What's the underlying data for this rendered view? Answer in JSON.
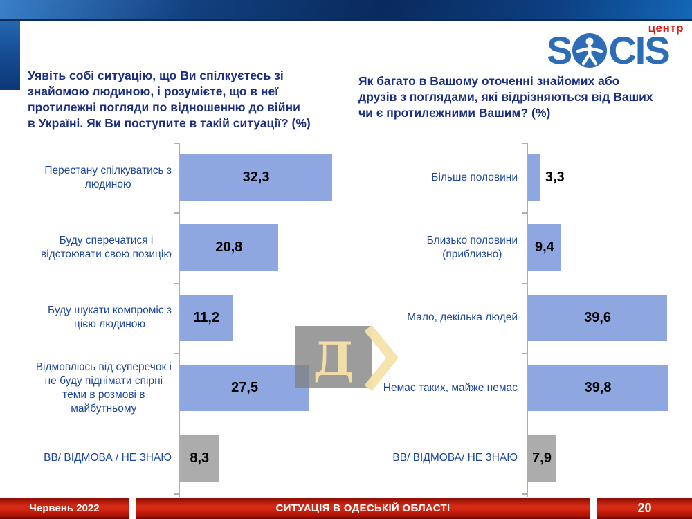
{
  "logo": {
    "s": "S",
    "cis": "CIS",
    "center_label": "центр"
  },
  "footer": {
    "date": "Червень 2022",
    "title": "СИТУАЦІЯ В ОДЕСЬКІЙ ОБЛАСТІ",
    "page": "20"
  },
  "watermark": {
    "letter": "Д"
  },
  "colors": {
    "bar_blue": "#8ea7e1",
    "bar_gray": "#acacac",
    "title_navy": "#1b2e80",
    "category_blue": "#1e489e",
    "footer_red": "#d92c17",
    "logo_blue": "#2d6db5",
    "logo_center_red": "#e0150d"
  },
  "chart_data": [
    {
      "type": "bar",
      "orientation": "horizontal",
      "title": "Уявіть собі ситуацію, що Ви спілкуєтесь зі знайомою людиною, і розумієте, що в неї протилежні погляди по відношенню до війни в Україні. Як Ви поступите в такій ситуації? (%)",
      "title_lines": [
        "Уявіть собі ситуацію, що Ви спілкуєтесь зі",
        "знайомою людиною, і розумієте, що в неї",
        "протилежні погляди по відношенню до війни",
        "в Україні. Як Ви поступите в такій ситуації? (%)"
      ],
      "categories": [
        "Перестану спілкуватись з людиною",
        "Буду сперечатися і відстоювати свою позицію",
        "Буду шукати компроміс з цією людиною",
        "Відмовлюсь від суперечок і не буду піднімати спірні теми в розмові в майбутньому",
        "ВВ/ ВІДМОВА / НЕ ЗНАЮ"
      ],
      "category_lines": [
        [
          "Перестану спілкуватись з",
          "людиною"
        ],
        [
          "Буду сперечатися і",
          "відстоювати свою позицію"
        ],
        [
          "Буду шукати компроміс з",
          "цією людиною"
        ],
        [
          "Відмовлюсь від суперечок і",
          "не буду піднімати спірні",
          "теми в розмові в",
          "майбутньому"
        ],
        [
          "ВВ/ ВІДМОВА / НЕ ЗНАЮ"
        ]
      ],
      "values": [
        32.3,
        20.8,
        11.2,
        27.5,
        8.3
      ],
      "value_labels": [
        "32,3",
        "20,8",
        "11,2",
        "27,5",
        "8,3"
      ],
      "bar_colors": [
        "blue",
        "blue",
        "blue",
        "blue",
        "gray"
      ],
      "xlim": [
        0,
        35.2
      ],
      "grid": false,
      "legend": false
    },
    {
      "type": "bar",
      "orientation": "horizontal",
      "title": "Як багато в Вашому оточенні знайомих або друзів з поглядами, які відрізняються від Ваших чи є протилежними Вашим? (%)",
      "title_lines": [
        "Як багато в Вашому оточенні знайомих або",
        "друзів з поглядами, які відрізняються від Ваших",
        "чи є протилежними Вашим? (%)"
      ],
      "categories": [
        "Більше половини",
        "Близько половини (приблизно)",
        "Мало, декілька людей",
        "Немає таких, майже немає",
        "ВВ/ ВІДМОВА/ НЕ ЗНАЮ"
      ],
      "category_lines": [
        [
          "Більше половини"
        ],
        [
          "Близько половини",
          "(приблизно)"
        ],
        [
          "Мало, декілька людей"
        ],
        [
          "Немає таких, майже немає"
        ],
        [
          "ВВ/ ВІДМОВА/ НЕ ЗНАЮ"
        ]
      ],
      "values": [
        3.3,
        9.4,
        39.6,
        39.8,
        7.9
      ],
      "value_labels": [
        "3,3",
        "9,4",
        "39,6",
        "39,8",
        "7,9"
      ],
      "bar_colors": [
        "blue",
        "blue",
        "blue",
        "blue",
        "gray"
      ],
      "xlim": [
        0,
        46.7
      ],
      "grid": false,
      "legend": false
    }
  ]
}
